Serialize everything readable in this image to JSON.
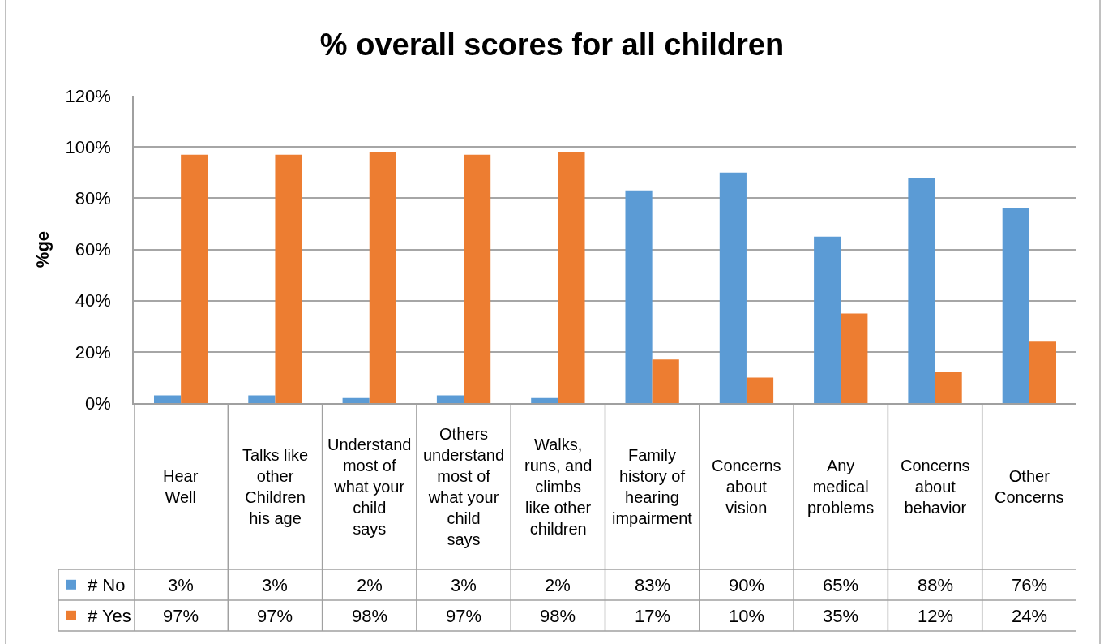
{
  "chart_data": {
    "type": "bar",
    "title": "% overall scores for all children",
    "ylabel": "%ge",
    "categories": [
      "Hear Well",
      "Talks like other Children his age",
      "Understand most of what your child says",
      "Others understand most of what your child says",
      "Walks, runs, and climbs like other children",
      "Family history of hearing impairment",
      "Concerns about vision",
      "Any medical problems",
      "Concerns about behavior",
      "Other Concerns"
    ],
    "series": [
      {
        "name": "# No",
        "color": "#5b9bd5",
        "values": [
          3,
          3,
          2,
          3,
          2,
          83,
          90,
          65,
          88,
          76
        ],
        "value_labels": [
          "3%",
          "3%",
          "2%",
          "3%",
          "2%",
          "83%",
          "90%",
          "65%",
          "88%",
          "76%"
        ]
      },
      {
        "name": "# Yes",
        "color": "#ed7d31",
        "values": [
          97,
          97,
          98,
          97,
          98,
          17,
          10,
          35,
          12,
          24
        ],
        "value_labels": [
          "97%",
          "97%",
          "98%",
          "97%",
          "98%",
          "17%",
          "10%",
          "35%",
          "12%",
          "24%"
        ]
      }
    ],
    "ylim": [
      0,
      120
    ],
    "yticks": [
      {
        "value": 0,
        "label": "0%"
      },
      {
        "value": 20,
        "label": "20%"
      },
      {
        "value": 40,
        "label": "40%"
      },
      {
        "value": 60,
        "label": "60%"
      },
      {
        "value": 80,
        "label": "80%"
      },
      {
        "value": 100,
        "label": "100%"
      },
      {
        "value": 120,
        "label": "120%"
      }
    ],
    "grid": "y",
    "legend": "bottom left"
  }
}
